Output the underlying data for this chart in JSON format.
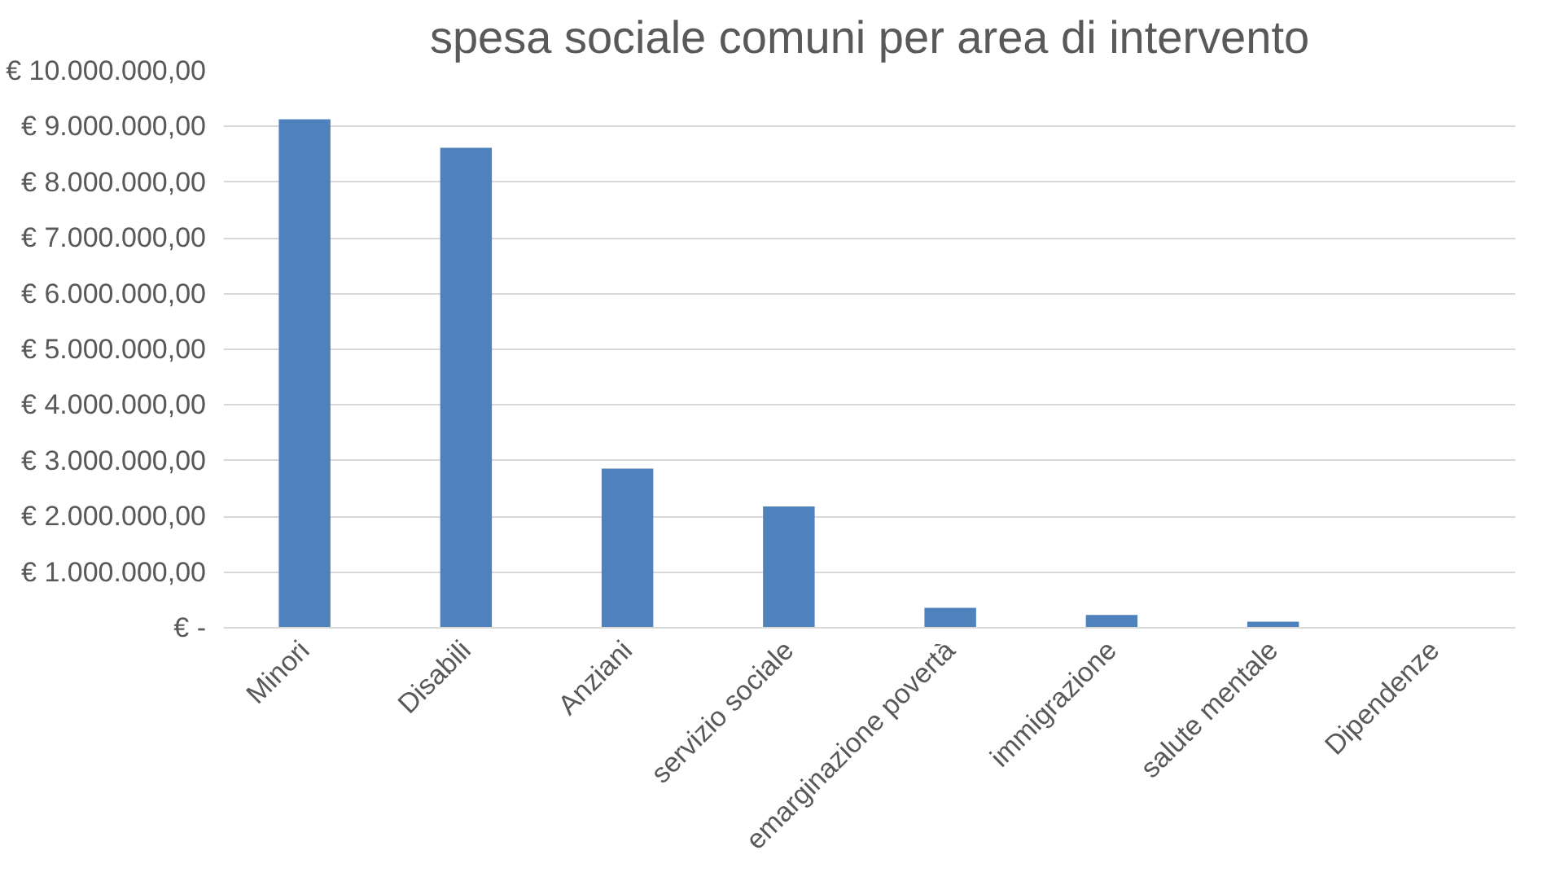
{
  "chart_data": {
    "type": "bar",
    "title": "spesa sociale comuni per area di intervento",
    "categories": [
      "Minori",
      "Disabili",
      "Anziani",
      "servizio sociale",
      "emarginazione povertà",
      "immigrazione",
      "salute mentale",
      "Dipendenze"
    ],
    "values": [
      9130000,
      8620000,
      2860000,
      2180000,
      360000,
      230000,
      110000,
      0
    ],
    "color": "#4f81bd",
    "ylim": [
      0,
      10000000
    ],
    "yticks": [
      {
        "value": 0,
        "label": "€ -"
      },
      {
        "value": 1000000,
        "label": "€ 1.000.000,00"
      },
      {
        "value": 2000000,
        "label": "€ 2.000.000,00"
      },
      {
        "value": 3000000,
        "label": "€ 3.000.000,00"
      },
      {
        "value": 4000000,
        "label": "€ 4.000.000,00"
      },
      {
        "value": 5000000,
        "label": "€ 5.000.000,00"
      },
      {
        "value": 6000000,
        "label": "€ 6.000.000,00"
      },
      {
        "value": 7000000,
        "label": "€ 7.000.000,00"
      },
      {
        "value": 8000000,
        "label": "€ 8.000.000,00"
      },
      {
        "value": 9000000,
        "label": "€ 9.000.000,00"
      },
      {
        "value": 10000000,
        "label": "€ 10.000.000,00"
      }
    ],
    "grid": "y"
  }
}
